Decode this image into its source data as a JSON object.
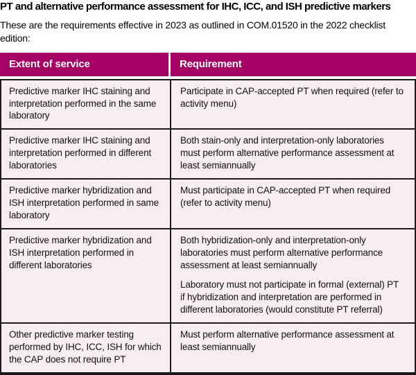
{
  "title": "PT and alternative performance assessment for IHC, ICC, and ISH predictive markers",
  "intro": "These are the requirements effective in 2023 as outlined in COM.01520 in the 2022 checklist edition:",
  "colors": {
    "header_bg": "#a50064",
    "header_text": "#ffffff",
    "row_bg": "#f8edf0",
    "border": "#1a1a1a"
  },
  "table": {
    "columns": [
      {
        "label": "Extent of service"
      },
      {
        "label": "Requirement"
      }
    ],
    "rows": [
      {
        "extent": "Predictive marker IHC staining and interpretation performed in the same laboratory",
        "requirements": [
          "Participate in CAP-accepted PT when required (refer to activity menu)"
        ]
      },
      {
        "extent": "Predictive marker IHC staining and interpretation performed in different laboratories",
        "requirements": [
          "Both stain-only and interpretation-only laboratories must perform alternative performance assessment at least semiannually"
        ]
      },
      {
        "extent": "Predictive marker hybridization and ISH interpretation performed in same laboratory",
        "requirements": [
          "Must participate in CAP-accepted PT when required (refer to activity menu)"
        ]
      },
      {
        "extent": "Predictive marker hybridization and ISH interpretation performed in different laboratories",
        "requirements": [
          "Both hybridization-only and interpretation-only laboratories must perform alternative performance assessment at least semiannually",
          "Laboratory must not participate in formal (external) PT if hybridization and interpretation are performed in different laboratories (would constitute PT referral)"
        ]
      },
      {
        "extent": "Other predictive marker testing performed by IHC, ICC, ISH for which the CAP does not require PT",
        "requirements": [
          "Must perform alternative performance assessment at least semiannually"
        ]
      }
    ]
  }
}
